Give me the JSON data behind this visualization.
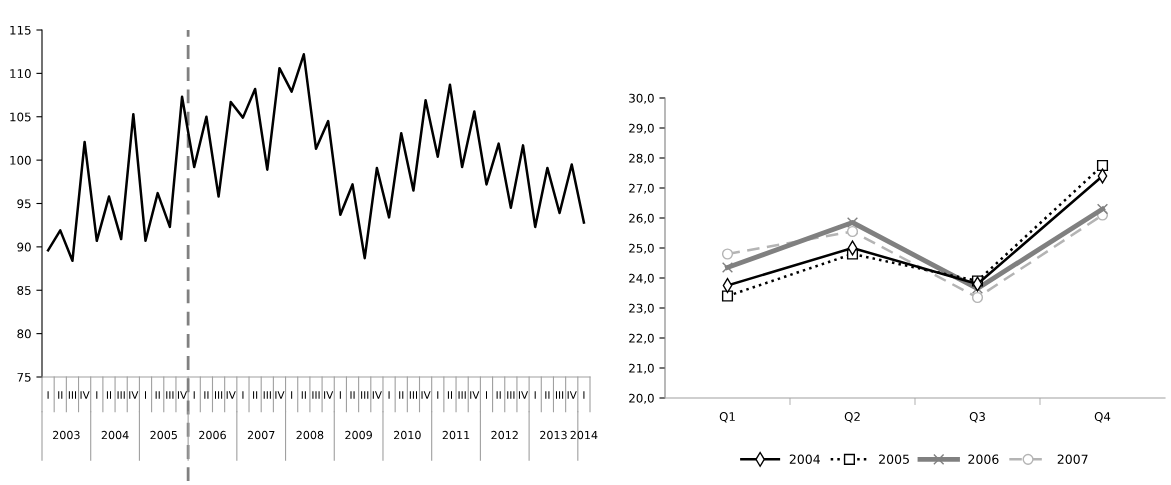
{
  "chart_data": [
    {
      "type": "line",
      "categories": [
        "I",
        "II",
        "III",
        "IV",
        "I",
        "II",
        "III",
        "IV",
        "I",
        "II",
        "III",
        "IV",
        "I",
        "II",
        "III",
        "IV",
        "I",
        "II",
        "III",
        "IV",
        "I",
        "II",
        "III",
        "IV",
        "I",
        "II",
        "III",
        "IV",
        "I",
        "II",
        "III",
        "IV",
        "I",
        "II",
        "III",
        "IV",
        "I",
        "II",
        "III",
        "IV",
        "I",
        "II",
        "III",
        "IV",
        "I"
      ],
      "series": [
        {
          "color": "#000000",
          "values": [
            89.6,
            91.9,
            88.4,
            102.1,
            90.7,
            95.8,
            90.9,
            105.3,
            90.7,
            96.2,
            92.3,
            107.3,
            99.2,
            105.0,
            95.8,
            106.7,
            104.9,
            108.2,
            98.9,
            110.6,
            107.9,
            112.2,
            101.3,
            104.5,
            93.7,
            97.2,
            88.7,
            99.1,
            93.4,
            103.1,
            96.5,
            106.9,
            100.4,
            108.7,
            99.2,
            105.6,
            97.2,
            101.9,
            94.5,
            101.7,
            92.3,
            99.1,
            93.9,
            99.5,
            92.8
          ]
        }
      ],
      "ylim": [
        75,
        115
      ],
      "yticks": [
        75,
        80,
        85,
        90,
        95,
        100,
        105,
        110,
        115
      ],
      "annotations": [
        "2003",
        "2004",
        "2005",
        "2006",
        "2007",
        "2008",
        "2009",
        "2010",
        "2011",
        "2012",
        "2013",
        "2014"
      ],
      "grid": false,
      "legend": false,
      "marker": "none",
      "line_style": "solid"
    },
    {
      "type": "line",
      "categories": [
        "Q1",
        "Q2",
        "Q3",
        "Q4"
      ],
      "series": [
        {
          "name": "2004",
          "color": "#000000",
          "values": [
            23.75,
            25.0,
            23.8,
            27.4
          ],
          "marker": "diamond",
          "line_style": "solid"
        },
        {
          "name": "2005",
          "color": "#000000",
          "values": [
            23.4,
            24.8,
            23.9,
            27.75
          ],
          "marker": "square",
          "line_style": "dotted"
        },
        {
          "name": "2006",
          "color": "#808080",
          "values": [
            24.35,
            25.85,
            23.65,
            26.3
          ],
          "marker": "cross",
          "line_style": "solid"
        },
        {
          "name": "2007",
          "color": "#b4b4b4",
          "values": [
            24.8,
            25.55,
            23.35,
            26.1
          ],
          "marker": "circle",
          "line_style": "dashed"
        }
      ],
      "ylim": [
        20,
        30
      ],
      "yticks": [
        {
          "value": 20,
          "label": "20,0"
        },
        {
          "value": 21,
          "label": "21,0"
        },
        {
          "value": 22,
          "label": "22,0"
        },
        {
          "value": 23,
          "label": "23,0"
        },
        {
          "value": 24,
          "label": "24,0"
        },
        {
          "value": 25,
          "label": "25,0"
        },
        {
          "value": 26,
          "label": "26,0"
        },
        {
          "value": 27,
          "label": "27,0"
        },
        {
          "value": 28,
          "label": "28,0"
        },
        {
          "value": 29,
          "label": "29,0"
        },
        {
          "value": 30,
          "label": "30,0"
        }
      ],
      "grid": false,
      "legend": "bottom"
    }
  ]
}
